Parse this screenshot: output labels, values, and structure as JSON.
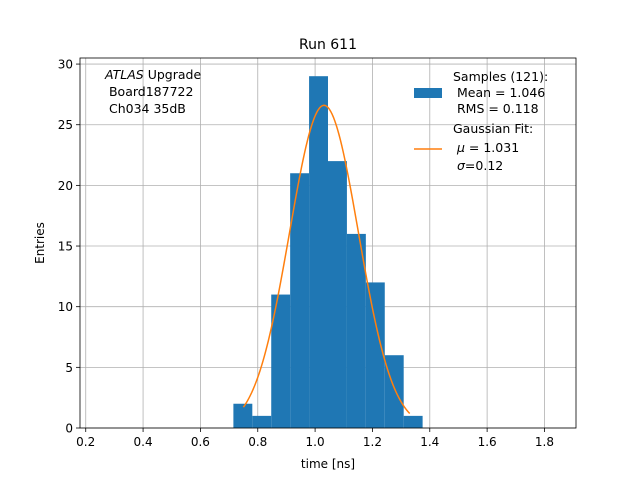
{
  "chart_data": {
    "type": "bar",
    "title": "Run 611",
    "xlabel": "time [ns]",
    "ylabel": "Entries",
    "xlim": [
      0.18,
      1.91
    ],
    "ylim": [
      0,
      30.5
    ],
    "xticks": [
      0.2,
      0.4,
      0.6,
      0.8,
      1.0,
      1.2,
      1.4,
      1.6,
      1.8
    ],
    "xtick_labels": [
      "0.2",
      "0.4",
      "0.6",
      "0.8",
      "1.0",
      "1.2",
      "1.4",
      "1.6",
      "1.8"
    ],
    "yticks": [
      0,
      5,
      10,
      15,
      20,
      25,
      30
    ],
    "ytick_labels": [
      "0",
      "5",
      "10",
      "15",
      "20",
      "25",
      "30"
    ],
    "grid": true,
    "histogram": {
      "bin_edges": [
        0.715,
        0.781,
        0.847,
        0.913,
        0.979,
        1.045,
        1.111,
        1.177,
        1.243,
        1.309,
        1.375
      ],
      "counts": [
        2,
        1,
        11,
        21,
        29,
        22,
        16,
        12,
        6,
        1
      ],
      "color": "#1f77b4"
    },
    "fit": {
      "type": "gaussian",
      "amplitude": 26.6,
      "mu": 1.031,
      "sigma": 0.12,
      "x_range": [
        0.75,
        1.33
      ],
      "color": "#ff7f0e"
    },
    "annotation": {
      "line1_italic": "ATLAS",
      "line1_rest": " Upgrade",
      "line2": " Board187722",
      "line3": " Ch034 35dB"
    },
    "legend": {
      "placement": "top-right",
      "samples_title": "Samples (121):",
      "samples_mean": " Mean = 1.046",
      "samples_rms": " RMS = 0.118",
      "fit_title": "Gaussian Fit:",
      "fit_mu_symbol": "μ",
      "fit_mu_value": " = 1.031",
      "fit_sigma_symbol": "σ",
      "fit_sigma_value": "=0.12"
    }
  }
}
